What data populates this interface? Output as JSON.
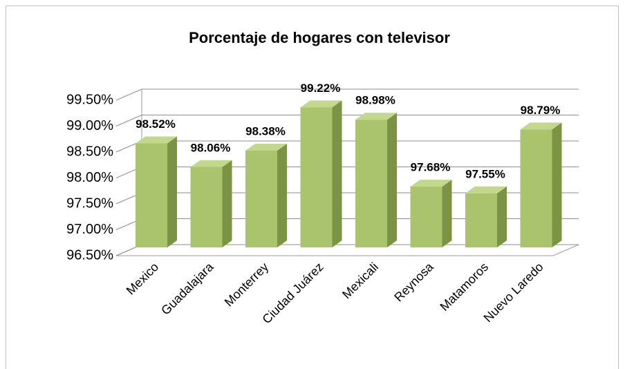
{
  "chart_data": {
    "type": "bar3d",
    "title": "Porcentaje de hogares con televisor",
    "categories": [
      "Mexico",
      "Guadalajara",
      "Monterrey",
      "Ciudad Juárez",
      "Mexicali",
      "Reynosa",
      "Matamoros",
      "Nuevo Laredo"
    ],
    "values": [
      98.52,
      98.06,
      98.38,
      99.22,
      98.98,
      97.68,
      97.55,
      98.79
    ],
    "value_labels": [
      "98.52%",
      "98.06%",
      "98.38%",
      "99.22%",
      "98.98%",
      "97.68%",
      "97.55%",
      "98.79%"
    ],
    "color": "#a9c46c",
    "ylim": [
      96.5,
      99.5
    ],
    "yticks": [
      {
        "value": 96.5,
        "label": "96.50%"
      },
      {
        "value": 97,
        "label": "97.00%"
      },
      {
        "value": 97.5,
        "label": "97.50%"
      },
      {
        "value": 98,
        "label": "98.00%"
      },
      {
        "value": 98.5,
        "label": "98.50%"
      },
      {
        "value": 99,
        "label": "99.00%"
      },
      {
        "value": 99.5,
        "label": "99.50%"
      }
    ],
    "grid": true
  }
}
